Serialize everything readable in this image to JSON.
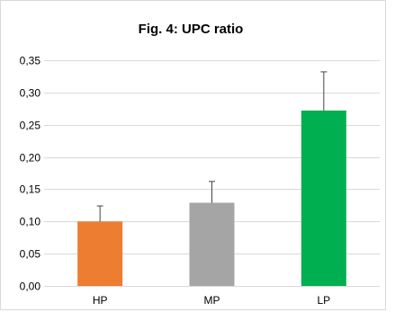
{
  "chart_data": {
    "type": "bar",
    "title": "Fig. 4: UPC ratio",
    "xlabel": "",
    "ylabel": "",
    "categories": [
      "HP",
      "MP",
      "LP"
    ],
    "values": [
      0.1,
      0.129,
      0.272
    ],
    "error_bars": [
      0.024,
      0.033,
      0.06
    ],
    "colors": [
      "#ed7d31",
      "#a5a5a5",
      "#00b050"
    ],
    "ylim": [
      0,
      0.35
    ],
    "yticks": [
      0.0,
      0.05,
      0.1,
      0.15,
      0.2,
      0.25,
      0.3,
      0.35
    ],
    "ytick_labels": [
      "0,00",
      "0,05",
      "0,10",
      "0,15",
      "0,20",
      "0,25",
      "0,30",
      "0,35"
    ],
    "grid": true,
    "legend": "none"
  }
}
